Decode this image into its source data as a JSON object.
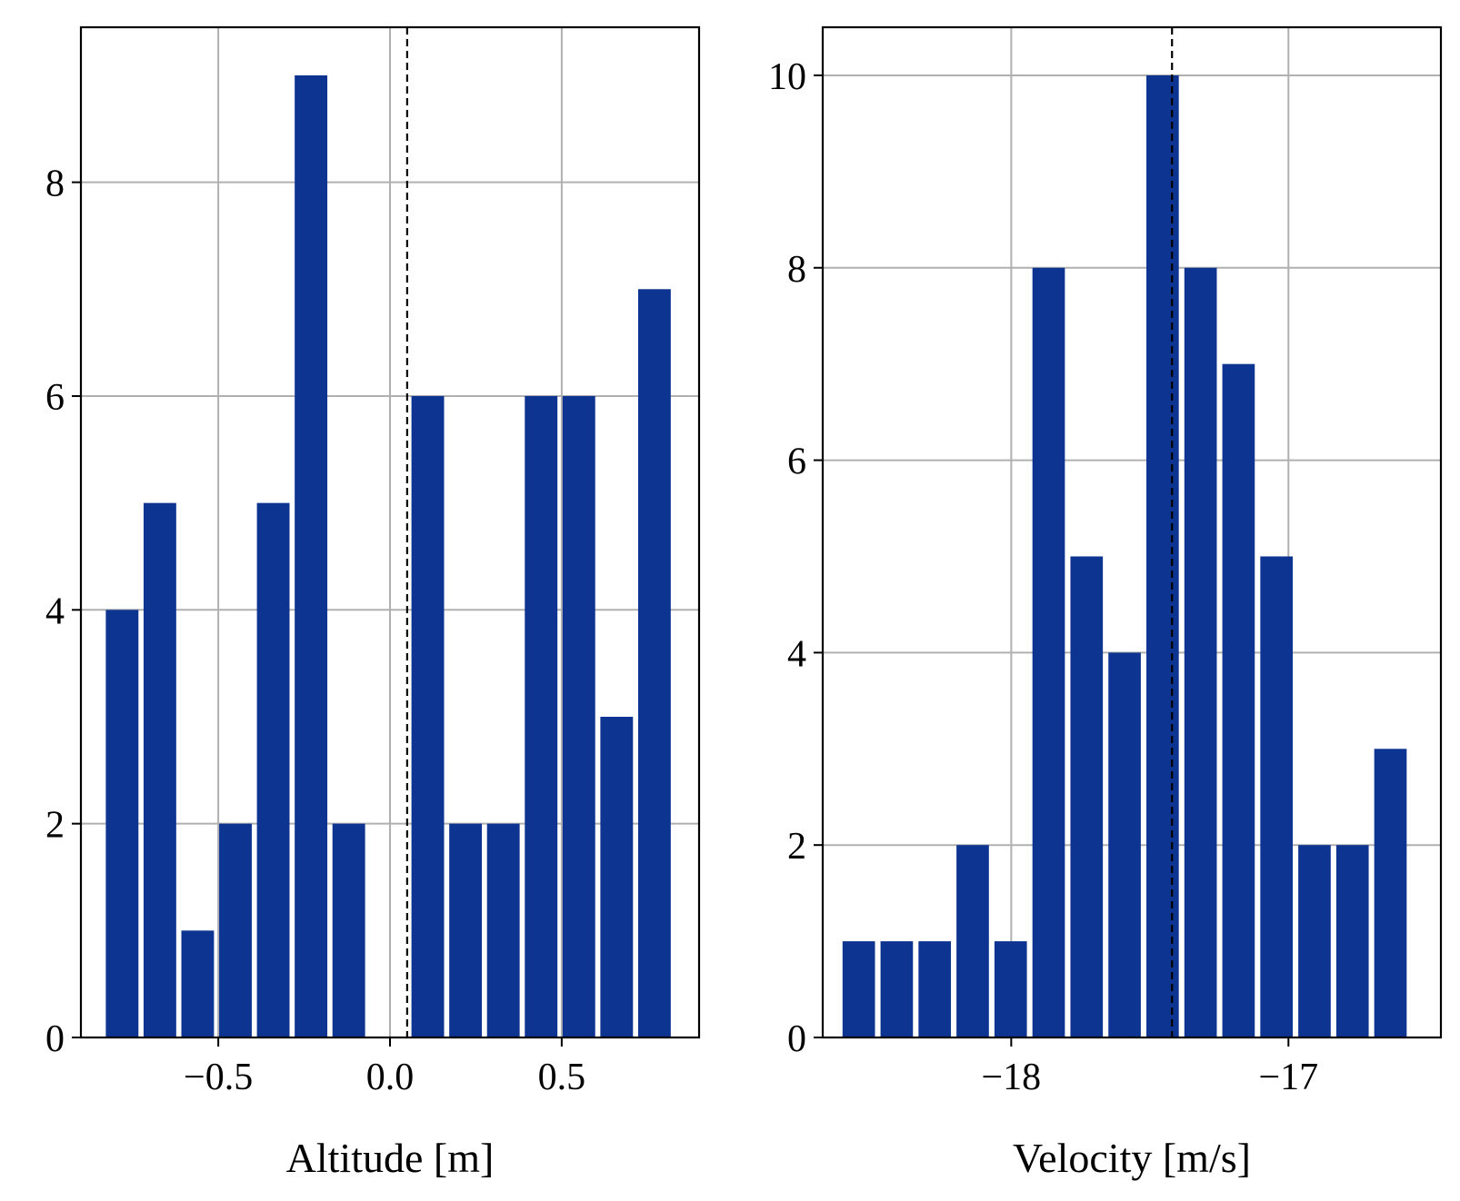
{
  "chart_data": [
    {
      "type": "bar",
      "title": "",
      "xlabel": "Altitude [m]",
      "ylabel": "",
      "xlim": [
        -0.9,
        0.9
      ],
      "ylim": [
        0,
        9.45
      ],
      "x_ticks": [
        -0.5,
        0.0,
        0.5
      ],
      "x_tick_labels": [
        "−0.5",
        "0.0",
        "0.5"
      ],
      "y_ticks": [
        0,
        2,
        4,
        6,
        8
      ],
      "y_tick_labels": [
        "0",
        "2",
        "4",
        "6",
        "8"
      ],
      "bin_centers": [
        -0.78,
        -0.67,
        -0.56,
        -0.45,
        -0.34,
        -0.23,
        -0.12,
        0.0,
        0.11,
        0.22,
        0.33,
        0.44,
        0.55,
        0.66,
        0.77
      ],
      "bin_width": 0.095,
      "values": [
        4,
        5,
        1,
        2,
        5,
        9,
        2,
        0,
        6,
        2,
        2,
        6,
        6,
        3,
        7
      ],
      "reference_line_x": 0.05,
      "grid": true,
      "bar_color": "#0d3491"
    },
    {
      "type": "bar",
      "title": "",
      "xlabel": "Velocity [m/s]",
      "ylabel": "",
      "xlim": [
        -18.68,
        -16.45
      ],
      "ylim": [
        0,
        10.5
      ],
      "x_ticks": [
        -18,
        -17
      ],
      "x_tick_labels": [
        "−18",
        "−17"
      ],
      "y_ticks": [
        0,
        2,
        4,
        6,
        8,
        10
      ],
      "y_tick_labels": [
        "0",
        "2",
        "4",
        "6",
        "8",
        "10"
      ],
      "bin_centers": [
        -18.55,
        -18.413,
        -18.276,
        -18.139,
        -18.002,
        -17.865,
        -17.728,
        -17.591,
        -17.454,
        -17.317,
        -17.18,
        -17.043,
        -16.906,
        -16.769,
        -16.632
      ],
      "bin_width": 0.117,
      "values": [
        1,
        1,
        1,
        2,
        1,
        8,
        5,
        4,
        10,
        8,
        7,
        5,
        2,
        2,
        3
      ],
      "reference_line_x": -17.42,
      "grid": true,
      "bar_color": "#0d3491"
    }
  ]
}
